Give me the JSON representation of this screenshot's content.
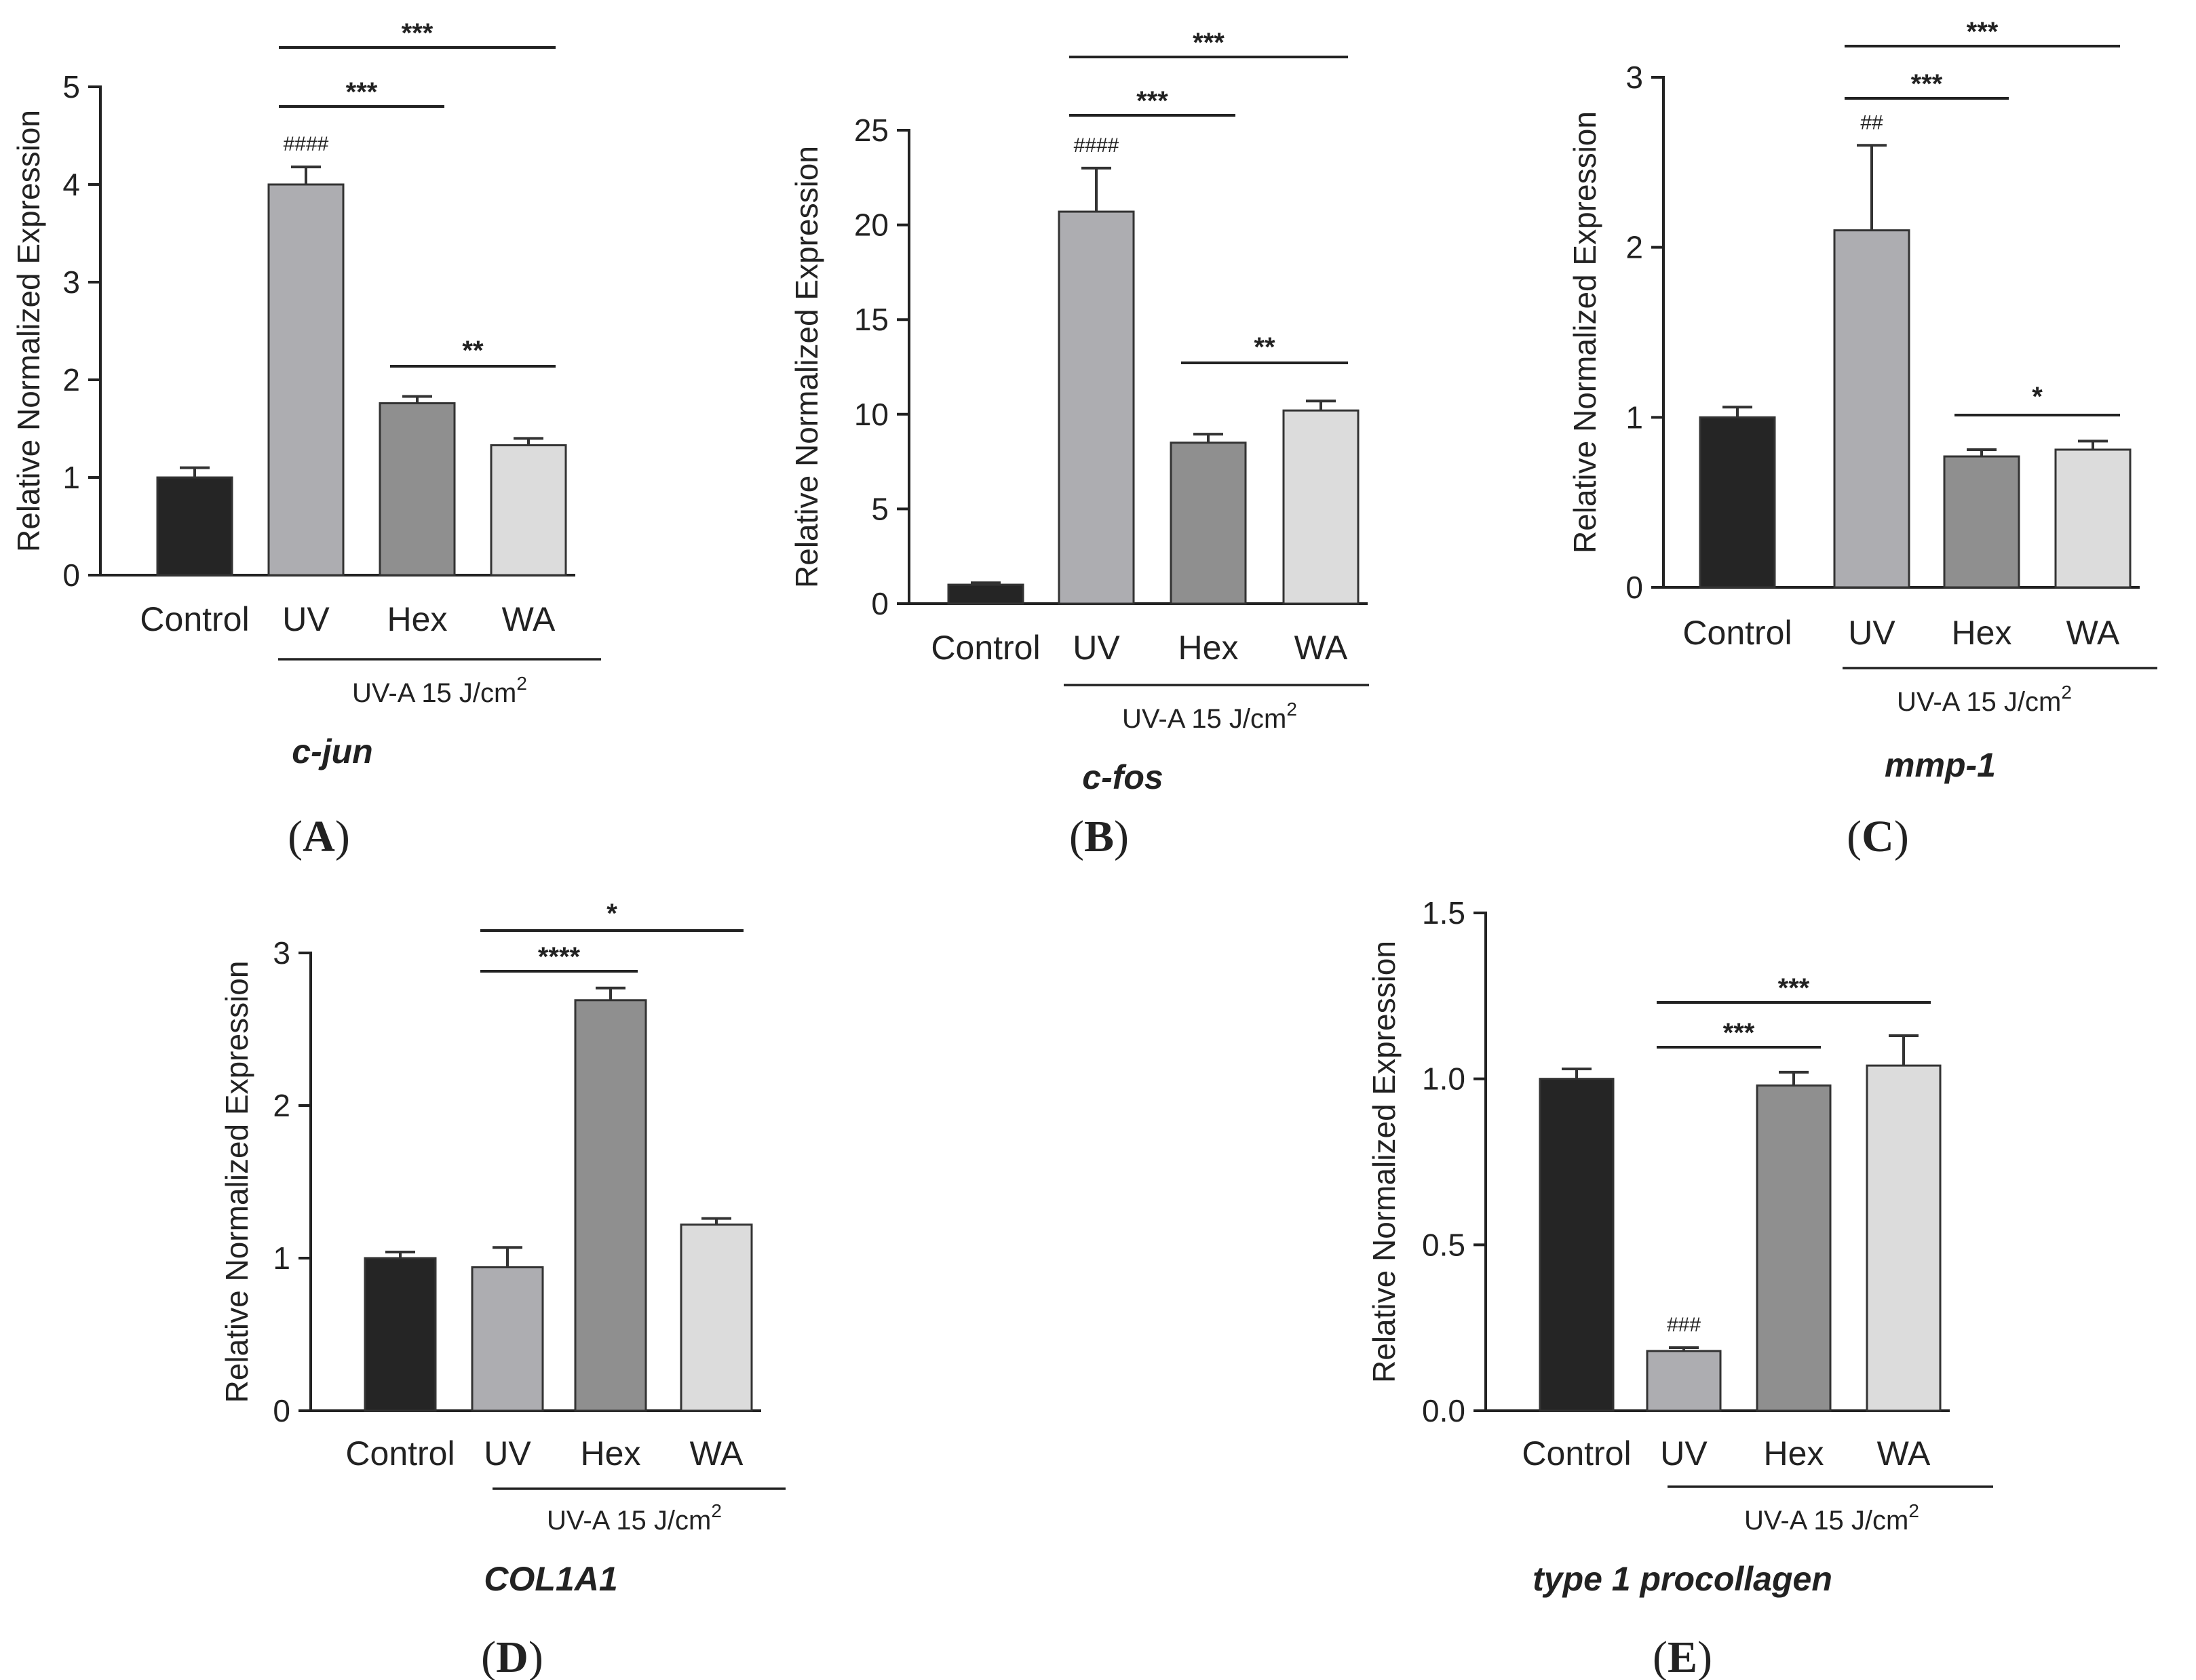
{
  "colors": {
    "Control": "#252525",
    "UV": "#adadb1",
    "Hex": "#8f8f8f",
    "WA": "#dcdcdc"
  },
  "chart_data": [
    {
      "type": "bar",
      "panel": "A",
      "title": "c-jun",
      "ylabel": "Relative Normalized Expression",
      "categories": [
        "Control",
        "UV",
        "Hex",
        "WA"
      ],
      "values": [
        1.0,
        4.0,
        1.76,
        1.33
      ],
      "errors": [
        0.1,
        0.18,
        0.07,
        0.07
      ],
      "ylim": [
        0,
        5
      ],
      "yticks": [
        0,
        1,
        2,
        3,
        4,
        5
      ],
      "ytick_labels": [
        "0",
        "1",
        "2",
        "3",
        "4",
        "5"
      ],
      "group_label": "UV-A 15 J/cm",
      "group_label_sup": "2",
      "hash_marks": [
        {
          "category": "UV",
          "text": "####"
        }
      ],
      "significance": [
        {
          "from": "UV",
          "to": "WA",
          "label": "***"
        },
        {
          "from": "UV",
          "to": "Hex",
          "label": "***"
        },
        {
          "from": "Hex",
          "to": "WA",
          "label": "**"
        }
      ]
    },
    {
      "type": "bar",
      "panel": "B",
      "title": "c-fos",
      "ylabel": "Relative Normalized Expression",
      "categories": [
        "Control",
        "UV",
        "Hex",
        "WA"
      ],
      "values": [
        1.0,
        20.7,
        8.5,
        10.2
      ],
      "errors": [
        0.1,
        2.3,
        0.45,
        0.5
      ],
      "ylim": [
        0,
        25
      ],
      "yticks": [
        0,
        5,
        10,
        15,
        20,
        25
      ],
      "ytick_labels": [
        "0",
        "5",
        "10",
        "15",
        "20",
        "25"
      ],
      "group_label": "UV-A 15 J/cm",
      "group_label_sup": "2",
      "hash_marks": [
        {
          "category": "UV",
          "text": "####"
        }
      ],
      "significance": [
        {
          "from": "UV",
          "to": "WA",
          "label": "***"
        },
        {
          "from": "UV",
          "to": "Hex",
          "label": "***"
        },
        {
          "from": "Hex",
          "to": "WA",
          "label": "**"
        }
      ]
    },
    {
      "type": "bar",
      "panel": "C",
      "title": "mmp-1",
      "ylabel": "Relative Normalized Expression",
      "categories": [
        "Control",
        "UV",
        "Hex",
        "WA"
      ],
      "values": [
        1.0,
        2.1,
        0.77,
        0.81
      ],
      "errors": [
        0.06,
        0.5,
        0.04,
        0.05
      ],
      "ylim": [
        0,
        3
      ],
      "yticks": [
        0,
        1,
        2,
        3
      ],
      "ytick_labels": [
        "0",
        "1",
        "2",
        "3"
      ],
      "group_label": "UV-A 15 J/cm",
      "group_label_sup": "2",
      "hash_marks": [
        {
          "category": "UV",
          "text": "##"
        }
      ],
      "significance": [
        {
          "from": "UV",
          "to": "WA",
          "label": "***"
        },
        {
          "from": "UV",
          "to": "Hex",
          "label": "***"
        },
        {
          "from": "Hex",
          "to": "WA",
          "label": "*"
        }
      ]
    },
    {
      "type": "bar",
      "panel": "D",
      "title": "COL1A1",
      "ylabel": "Relative Normalized Expression",
      "categories": [
        "Control",
        "UV",
        "Hex",
        "WA"
      ],
      "values": [
        1.0,
        0.94,
        2.69,
        1.22
      ],
      "errors": [
        0.04,
        0.13,
        0.08,
        0.04
      ],
      "ylim": [
        0,
        3
      ],
      "yticks": [
        0,
        1,
        2,
        3
      ],
      "ytick_labels": [
        "0",
        "1",
        "2",
        "3"
      ],
      "group_label": "UV-A 15 J/cm",
      "group_label_sup": "2",
      "hash_marks": [],
      "significance": [
        {
          "from": "UV",
          "to": "WA",
          "label": "*"
        },
        {
          "from": "UV",
          "to": "Hex",
          "label": "****"
        }
      ]
    },
    {
      "type": "bar",
      "panel": "E",
      "title": "type 1 procollagen",
      "ylabel": "Relative Normalized Expression",
      "categories": [
        "Control",
        "UV",
        "Hex",
        "WA"
      ],
      "values": [
        1.0,
        0.18,
        0.98,
        1.04
      ],
      "errors": [
        0.03,
        0.01,
        0.04,
        0.09
      ],
      "ylim": [
        0,
        1.5
      ],
      "yticks": [
        0,
        0.5,
        1.0,
        1.5
      ],
      "ytick_labels": [
        "0.0",
        "0.5",
        "1.0",
        "1.5"
      ],
      "group_label": "UV-A 15 J/cm",
      "group_label_sup": "2",
      "hash_marks": [
        {
          "category": "UV",
          "text": "###"
        }
      ],
      "significance": [
        {
          "from": "UV",
          "to": "WA",
          "label": "***"
        },
        {
          "from": "UV",
          "to": "Hex",
          "label": "***"
        }
      ]
    }
  ]
}
